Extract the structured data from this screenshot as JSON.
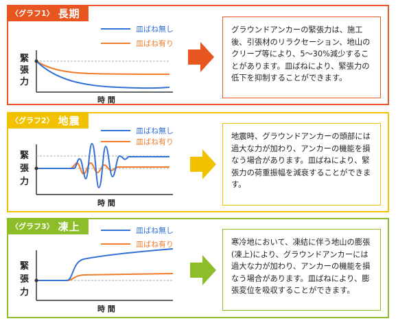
{
  "panels": [
    {
      "tag_prefix": "〈グラフ1〉",
      "tag_title": "長期",
      "color": "#e8561f",
      "text": "グラウンドアンカーの緊張力は、施工後、引張材のリラクセーション、地山のクリープ等により、5～30%減少することがあります。皿ばねにより、緊張力の低下を抑制することができます。"
    },
    {
      "tag_prefix": "〈グラフ2〉",
      "tag_title": "地震",
      "color": "#f2c200",
      "text": "地震時、グラウンドアンカーの頭部には過大な力が加わり、アンカーの機能を損なう場合があります。皿ばねにより、緊張力の荷重振幅を減衰することができます。"
    },
    {
      "tag_prefix": "〈グラフ3〉",
      "tag_title": "凍上",
      "color": "#8dbe2a",
      "text": "寒冷地において、凍結に伴う地山の膨張(凍上)により、グラウンドアンカーには過大な力が加わり、アンカーの機能を損なう場合があります。皿ばねにより、膨張変位を吸収することができます。"
    }
  ],
  "legend": {
    "without": "皿ばね無し",
    "with": "皿ばね有り"
  },
  "axes": {
    "y_label": [
      "緊",
      "張",
      "力"
    ],
    "x_label": "時 間"
  },
  "colors": {
    "without": "#2f6fd6",
    "with": "#f07c2a"
  }
}
